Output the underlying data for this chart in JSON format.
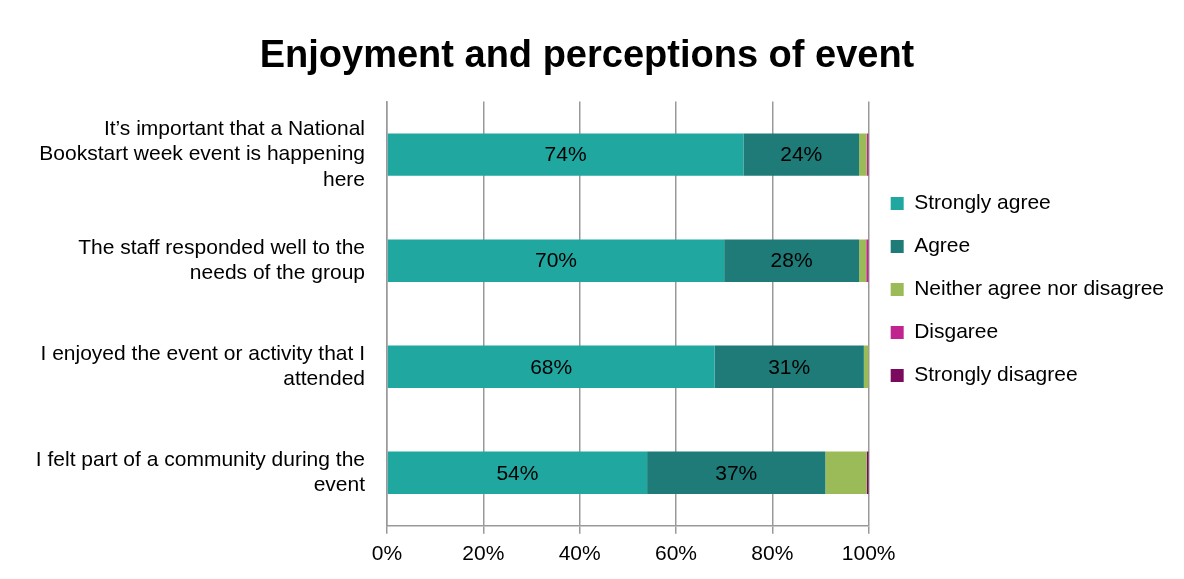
{
  "chart_data": {
    "type": "bar",
    "orientation": "horizontal",
    "stacked": true,
    "title": "Enjoyment and perceptions of event",
    "categories": [
      "It’s important that a National Bookstart week event is happening here",
      "The staff responded well to the needs of the group",
      "I enjoyed the event or activity that I attended",
      "I felt part of a community during the event"
    ],
    "series": [
      {
        "name": "Strongly agree",
        "color": "#20a7a0",
        "values": [
          74,
          70,
          68,
          54
        ],
        "value_labels": [
          "74%",
          "70%",
          "68%",
          "54%"
        ]
      },
      {
        "name": "Agree",
        "color": "#1e7b78",
        "values": [
          24,
          28,
          31,
          37
        ],
        "value_labels": [
          "24%",
          "28%",
          "31%",
          "37%"
        ]
      },
      {
        "name": "Neither agree nor disagree",
        "color": "#9bbb59",
        "values": [
          1.6,
          1.5,
          1,
          8.6
        ],
        "value_labels": [
          null,
          null,
          null,
          null
        ]
      },
      {
        "name": "Disgaree",
        "color": "#c0248f",
        "values": [
          0.4,
          0.5,
          0,
          0
        ],
        "value_labels": [
          null,
          null,
          null,
          null
        ]
      },
      {
        "name": "Strongly disagree",
        "color": "#7b0a5e",
        "values": [
          0,
          0,
          0,
          0.4
        ],
        "value_labels": [
          null,
          null,
          null,
          null
        ]
      }
    ],
    "xlim": [
      0,
      100
    ],
    "xticks": [
      {
        "value": 0,
        "label": "0%"
      },
      {
        "value": 20,
        "label": "20%"
      },
      {
        "value": 40,
        "label": "40%"
      },
      {
        "value": 60,
        "label": "60%"
      },
      {
        "value": 80,
        "label": "80%"
      },
      {
        "value": 100,
        "label": "100%"
      }
    ],
    "grid": "x",
    "legend": "right"
  }
}
